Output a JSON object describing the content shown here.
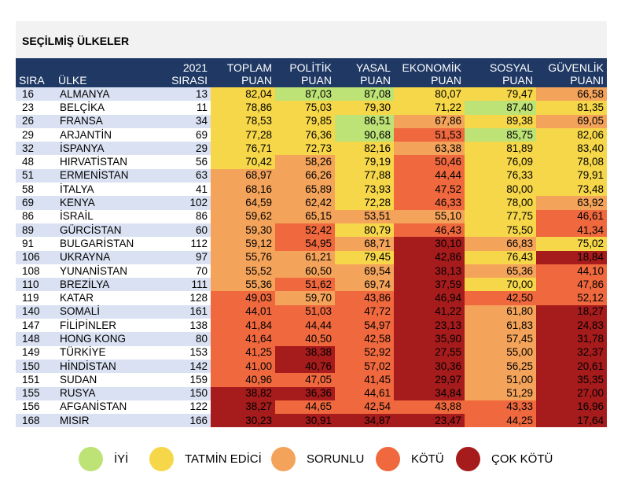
{
  "title": "SEÇİLMİŞ ÜLKELER",
  "colors": {
    "iyi": "#bde276",
    "tatmin": "#f6d749",
    "sorunlu": "#f4a35a",
    "kotu": "#ef683e",
    "cok_kotu": "#a61b1b",
    "header": "#1f3864",
    "band": "#d9e1f2"
  },
  "headers": {
    "sira": "SIRA",
    "ulke": "ÜLKE",
    "rank2021_1": "2021",
    "rank2021_2": "SIRASI",
    "toplam_1": "TOPLAM",
    "toplam_2": "PUAN",
    "politik_1": "POLİTİK",
    "politik_2": "PUAN",
    "yasal_1": "YASAL",
    "yasal_2": "PUAN",
    "ekonomik_1": "EKONOMİK",
    "ekonomik_2": "PUAN",
    "sosyal_1": "SOSYAL",
    "sosyal_2": "PUAN",
    "guvenlik_1": "GÜVENLİK",
    "guvenlik_2": "PUANI"
  },
  "legend": [
    {
      "key": "iyi",
      "label": "İYİ"
    },
    {
      "key": "tatmin",
      "label": "TATMİN EDİCİ"
    },
    {
      "key": "sorunlu",
      "label": "SORUNLU"
    },
    {
      "key": "kotu",
      "label": "KÖTÜ"
    },
    {
      "key": "cok_kotu",
      "label": "ÇOK KÖTÜ"
    }
  ],
  "chart_data": {
    "type": "table",
    "title": "SEÇİLMİŞ ÜLKELER",
    "columns": [
      "SIRA",
      "ÜLKE",
      "2021 SIRASI",
      "TOPLAM PUAN",
      "POLİTİK PUAN",
      "YASAL PUAN",
      "EKONOMİK PUAN",
      "SOSYAL PUAN",
      "GÜVENLİK PUANI"
    ],
    "rows": [
      {
        "sira": "16",
        "ulke": "ALMANYA",
        "r2021": "13",
        "scores": [
          [
            "82,04",
            "t"
          ],
          [
            "87,03",
            "i"
          ],
          [
            "87,08",
            "i"
          ],
          [
            "80,07",
            "t"
          ],
          [
            "79,47",
            "t"
          ],
          [
            "66,58",
            "s"
          ]
        ]
      },
      {
        "sira": "23",
        "ulke": "BELÇİKA",
        "r2021": "11",
        "scores": [
          [
            "78,86",
            "t"
          ],
          [
            "75,03",
            "t"
          ],
          [
            "79,30",
            "t"
          ],
          [
            "71,22",
            "t"
          ],
          [
            "87,40",
            "i"
          ],
          [
            "81,35",
            "t"
          ]
        ]
      },
      {
        "sira": "26",
        "ulke": "FRANSA",
        "r2021": "34",
        "scores": [
          [
            "78,53",
            "t"
          ],
          [
            "79,85",
            "t"
          ],
          [
            "86,51",
            "i"
          ],
          [
            "67,86",
            "s"
          ],
          [
            "89,38",
            "t"
          ],
          [
            "69,05",
            "s"
          ]
        ]
      },
      {
        "sira": "29",
        "ulke": "ARJANTİN",
        "r2021": "69",
        "scores": [
          [
            "77,28",
            "t"
          ],
          [
            "76,36",
            "t"
          ],
          [
            "90,68",
            "i"
          ],
          [
            "51,53",
            "k"
          ],
          [
            "85,75",
            "i"
          ],
          [
            "82,06",
            "t"
          ]
        ]
      },
      {
        "sira": "32",
        "ulke": "İSPANYA",
        "r2021": "29",
        "scores": [
          [
            "76,71",
            "t"
          ],
          [
            "72,73",
            "t"
          ],
          [
            "82,16",
            "t"
          ],
          [
            "63,38",
            "s"
          ],
          [
            "81,89",
            "t"
          ],
          [
            "83,40",
            "t"
          ]
        ]
      },
      {
        "sira": "48",
        "ulke": "HIRVATİSTAN",
        "r2021": "56",
        "scores": [
          [
            "70,42",
            "t"
          ],
          [
            "58,26",
            "s"
          ],
          [
            "79,19",
            "t"
          ],
          [
            "50,46",
            "k"
          ],
          [
            "76,09",
            "t"
          ],
          [
            "78,08",
            "t"
          ]
        ]
      },
      {
        "sira": "51",
        "ulke": "ERMENİSTAN",
        "r2021": "63",
        "scores": [
          [
            "68,97",
            "s"
          ],
          [
            "66,26",
            "s"
          ],
          [
            "77,88",
            "t"
          ],
          [
            "44,44",
            "k"
          ],
          [
            "76,33",
            "t"
          ],
          [
            "79,91",
            "t"
          ]
        ]
      },
      {
        "sira": "58",
        "ulke": "İTALYA",
        "r2021": "41",
        "scores": [
          [
            "68,16",
            "s"
          ],
          [
            "65,89",
            "s"
          ],
          [
            "73,93",
            "t"
          ],
          [
            "47,52",
            "k"
          ],
          [
            "80,00",
            "t"
          ],
          [
            "73,48",
            "t"
          ]
        ]
      },
      {
        "sira": "69",
        "ulke": "KENYA",
        "r2021": "102",
        "scores": [
          [
            "64,59",
            "s"
          ],
          [
            "62,42",
            "s"
          ],
          [
            "72,28",
            "t"
          ],
          [
            "46,33",
            "k"
          ],
          [
            "78,00",
            "t"
          ],
          [
            "63,92",
            "s"
          ]
        ]
      },
      {
        "sira": "86",
        "ulke": "İSRAİL",
        "r2021": "86",
        "scores": [
          [
            "59,62",
            "s"
          ],
          [
            "65,15",
            "s"
          ],
          [
            "53,51",
            "s"
          ],
          [
            "55,10",
            "s"
          ],
          [
            "77,75",
            "t"
          ],
          [
            "46,61",
            "k"
          ]
        ]
      },
      {
        "sira": "89",
        "ulke": "GÜRCİSTAN",
        "r2021": "60",
        "scores": [
          [
            "59,30",
            "s"
          ],
          [
            "52,42",
            "k"
          ],
          [
            "80,79",
            "t"
          ],
          [
            "46,43",
            "k"
          ],
          [
            "75,50",
            "t"
          ],
          [
            "41,34",
            "k"
          ]
        ]
      },
      {
        "sira": "91",
        "ulke": "BULGARİSTAN",
        "r2021": "112",
        "scores": [
          [
            "59,12",
            "s"
          ],
          [
            "54,95",
            "k"
          ],
          [
            "68,71",
            "s"
          ],
          [
            "30,10",
            "c"
          ],
          [
            "66,83",
            "s"
          ],
          [
            "75,02",
            "t"
          ]
        ]
      },
      {
        "sira": "106",
        "ulke": "UKRAYNA",
        "r2021": "97",
        "scores": [
          [
            "55,76",
            "s"
          ],
          [
            "61,21",
            "s"
          ],
          [
            "79,45",
            "t"
          ],
          [
            "42,86",
            "c"
          ],
          [
            "76,43",
            "t"
          ],
          [
            "18,84",
            "c"
          ]
        ]
      },
      {
        "sira": "108",
        "ulke": "YUNANİSTAN",
        "r2021": "70",
        "scores": [
          [
            "55,52",
            "s"
          ],
          [
            "60,50",
            "s"
          ],
          [
            "69,54",
            "s"
          ],
          [
            "38,13",
            "c"
          ],
          [
            "65,36",
            "s"
          ],
          [
            "44,10",
            "k"
          ]
        ]
      },
      {
        "sira": "110",
        "ulke": "BREZİLYA",
        "r2021": "111",
        "scores": [
          [
            "55,36",
            "s"
          ],
          [
            "51,62",
            "k"
          ],
          [
            "69,74",
            "s"
          ],
          [
            "37,59",
            "c"
          ],
          [
            "70,00",
            "t"
          ],
          [
            "47,86",
            "k"
          ]
        ]
      },
      {
        "sira": "119",
        "ulke": "KATAR",
        "r2021": "128",
        "scores": [
          [
            "49,03",
            "k"
          ],
          [
            "59,70",
            "s"
          ],
          [
            "43,86",
            "k"
          ],
          [
            "46,94",
            "c"
          ],
          [
            "42,50",
            "k"
          ],
          [
            "52,12",
            "k"
          ]
        ]
      },
      {
        "sira": "140",
        "ulke": "SOMALİ",
        "r2021": "161",
        "scores": [
          [
            "44,01",
            "k"
          ],
          [
            "51,03",
            "k"
          ],
          [
            "47,72",
            "k"
          ],
          [
            "41,22",
            "c"
          ],
          [
            "61,80",
            "s"
          ],
          [
            "18,27",
            "c"
          ]
        ]
      },
      {
        "sira": "147",
        "ulke": "FİLİPİNLER",
        "r2021": "138",
        "scores": [
          [
            "41,84",
            "k"
          ],
          [
            "44,44",
            "k"
          ],
          [
            "54,97",
            "k"
          ],
          [
            "23,13",
            "c"
          ],
          [
            "61,83",
            "s"
          ],
          [
            "24,83",
            "c"
          ]
        ]
      },
      {
        "sira": "148",
        "ulke": "HONG KONG",
        "r2021": "80",
        "scores": [
          [
            "41,64",
            "k"
          ],
          [
            "40,50",
            "k"
          ],
          [
            "42,58",
            "k"
          ],
          [
            "35,90",
            "c"
          ],
          [
            "57,45",
            "s"
          ],
          [
            "31,78",
            "c"
          ]
        ]
      },
      {
        "sira": "149",
        "ulke": "TÜRKİYE",
        "r2021": "153",
        "scores": [
          [
            "41,25",
            "k"
          ],
          [
            "38,38",
            "c"
          ],
          [
            "52,92",
            "k"
          ],
          [
            "27,55",
            "c"
          ],
          [
            "55,00",
            "s"
          ],
          [
            "32,37",
            "c"
          ]
        ]
      },
      {
        "sira": "150",
        "ulke": "HİNDİSTAN",
        "r2021": "142",
        "scores": [
          [
            "41,00",
            "k"
          ],
          [
            "40,76",
            "c"
          ],
          [
            "57,02",
            "k"
          ],
          [
            "30,36",
            "c"
          ],
          [
            "56,25",
            "s"
          ],
          [
            "20,61",
            "c"
          ]
        ]
      },
      {
        "sira": "151",
        "ulke": "SUDAN",
        "r2021": "159",
        "scores": [
          [
            "40,96",
            "k"
          ],
          [
            "47,05",
            "k"
          ],
          [
            "41,45",
            "k"
          ],
          [
            "29,97",
            "c"
          ],
          [
            "51,00",
            "s"
          ],
          [
            "35,35",
            "c"
          ]
        ]
      },
      {
        "sira": "155",
        "ulke": "RUSYA",
        "r2021": "150",
        "scores": [
          [
            "38,82",
            "c"
          ],
          [
            "36,36",
            "c"
          ],
          [
            "44,61",
            "k"
          ],
          [
            "34,84",
            "c"
          ],
          [
            "51,29",
            "s"
          ],
          [
            "27,00",
            "c"
          ]
        ]
      },
      {
        "sira": "156",
        "ulke": "AFGANİSTAN",
        "r2021": "122",
        "scores": [
          [
            "38,27",
            "c"
          ],
          [
            "44,65",
            "k"
          ],
          [
            "42,54",
            "k"
          ],
          [
            "43,88",
            "k"
          ],
          [
            "43,33",
            "k"
          ],
          [
            "16,96",
            "c"
          ]
        ]
      },
      {
        "sira": "168",
        "ulke": "MISIR",
        "r2021": "166",
        "scores": [
          [
            "30,23",
            "c"
          ],
          [
            "30,91",
            "c"
          ],
          [
            "34,87",
            "c"
          ],
          [
            "23,47",
            "c"
          ],
          [
            "44,25",
            "k"
          ],
          [
            "17,64",
            "c"
          ]
        ]
      }
    ]
  }
}
